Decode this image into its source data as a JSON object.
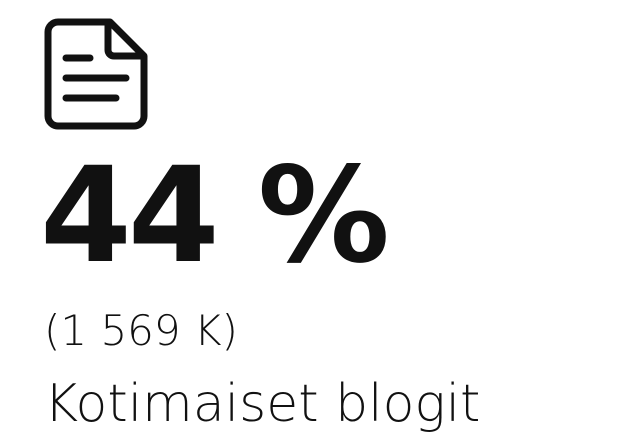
{
  "stat": {
    "percent": "44 %",
    "count": "(1 569 K)",
    "label": "Kotimaiset blogit"
  }
}
